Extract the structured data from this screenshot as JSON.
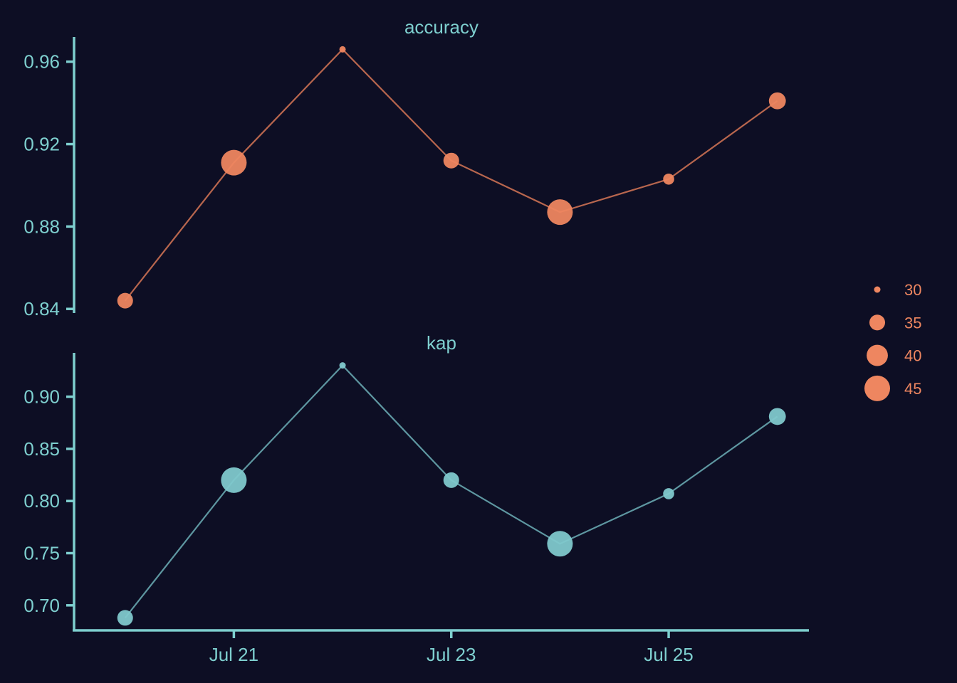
{
  "chart_data": {
    "type": "line",
    "x": [
      "2024-07-20",
      "2024-07-21",
      "2024-07-22",
      "2024-07-23",
      "2024-07-24",
      "2024-07-25",
      "2024-07-26"
    ],
    "x_tick_labels": [
      {
        "date": "2024-07-21",
        "label": "Jul 21"
      },
      {
        "date": "2024-07-23",
        "label": "Jul 23"
      },
      {
        "date": "2024-07-25",
        "label": "Jul 25"
      }
    ],
    "size_values": [
      35,
      45,
      30,
      35,
      45,
      32,
      36
    ],
    "panels": [
      {
        "title": "accuracy",
        "color": "#ee8660",
        "line_color": "#b8664e",
        "values": [
          0.844,
          0.911,
          0.966,
          0.912,
          0.887,
          0.903,
          0.941
        ],
        "ylim": [
          0.838,
          0.972
        ],
        "y_ticks": [
          {
            "value": 0.84,
            "label": "0.84"
          },
          {
            "value": 0.88,
            "label": "0.88"
          },
          {
            "value": 0.92,
            "label": "0.92"
          },
          {
            "value": 0.96,
            "label": "0.96"
          }
        ]
      },
      {
        "title": "kap",
        "color": "#80c8cc",
        "line_color": "#5e97a1",
        "values": [
          0.688,
          0.82,
          0.93,
          0.82,
          0.759,
          0.807,
          0.881
        ],
        "ylim": [
          0.676,
          0.942
        ],
        "y_ticks": [
          {
            "value": 0.7,
            "label": "0.70"
          },
          {
            "value": 0.75,
            "label": "0.75"
          },
          {
            "value": 0.8,
            "label": "0.80"
          },
          {
            "value": 0.85,
            "label": "0.85"
          },
          {
            "value": 0.9,
            "label": "0.90"
          }
        ]
      }
    ],
    "legend": {
      "placement": "right",
      "color": "#ee8660",
      "entries": [
        {
          "value": 30,
          "label": "30"
        },
        {
          "value": 35,
          "label": "35"
        },
        {
          "value": 40,
          "label": "40"
        },
        {
          "value": 45,
          "label": "45"
        }
      ]
    },
    "grid": false
  }
}
